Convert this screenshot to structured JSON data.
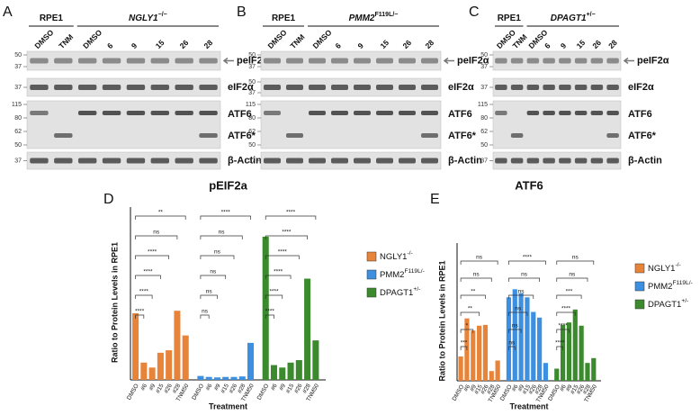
{
  "blots": [
    {
      "panel": "A",
      "groups": [
        {
          "label": "RPE1"
        },
        {
          "label": "NGLY1",
          "superscript": "−/−"
        }
      ],
      "lanes": [
        "DMSO",
        "TNM",
        "DMSO",
        "6",
        "9",
        "15",
        "26",
        "28"
      ],
      "rows": [
        {
          "labels": [
            "peIF2α"
          ],
          "markers": [
            50,
            37
          ]
        },
        {
          "labels": [
            "eIF2α"
          ],
          "markers": [
            37
          ]
        },
        {
          "labels": [
            "ATF6",
            "ATF6*"
          ],
          "markers": [
            115,
            80,
            62,
            50
          ]
        },
        {
          "labels": [
            "β-Actin"
          ],
          "markers": [
            37
          ]
        }
      ]
    },
    {
      "panel": "B",
      "groups": [
        {
          "label": "RPE1"
        },
        {
          "label": "PMM2",
          "superscript": "F119L/−"
        }
      ],
      "lanes": [
        "DMSO",
        "TNM",
        "DMSO",
        "6",
        "9",
        "15",
        "26",
        "28"
      ],
      "rows": [
        {
          "labels": [
            "peIF2α"
          ],
          "markers": [
            50,
            37
          ]
        },
        {
          "labels": [
            "eIF2α"
          ],
          "markers": [
            50,
            37
          ]
        },
        {
          "labels": [
            "ATF6",
            "ATF6*"
          ],
          "markers": [
            115,
            80,
            62,
            50
          ]
        },
        {
          "labels": [
            "β-Actin"
          ],
          "markers": [
            37
          ]
        }
      ]
    },
    {
      "panel": "C",
      "groups": [
        {
          "label": "RPE1"
        },
        {
          "label": "DPAGT1",
          "superscript": "+/−"
        }
      ],
      "lanes": [
        "DMSO",
        "TNM",
        "DMSO",
        "6",
        "9",
        "15",
        "26",
        "28"
      ],
      "rows": [
        {
          "labels": [
            "peIF2α"
          ],
          "markers": [
            50,
            37
          ]
        },
        {
          "labels": [
            "eIF2α"
          ],
          "markers": [
            37
          ]
        },
        {
          "labels": [
            "ATF6",
            "ATF6*"
          ],
          "markers": [
            115,
            80,
            62,
            50
          ]
        },
        {
          "labels": [
            "β-Actin"
          ],
          "markers": [
            37
          ]
        }
      ]
    }
  ],
  "chart_data": [
    {
      "type": "bar",
      "panel": "D",
      "title": "pEIF2a",
      "y_label": "Ratio to Protein Levels in RPE1",
      "x_label": "Treatment",
      "categories": [
        "DMSO",
        "#6",
        "#9",
        "#15",
        "#26",
        "#28",
        "TNM50"
      ],
      "ylim": [
        0,
        35
      ],
      "series": [
        {
          "name": "NGLY1",
          "name_superscript": "-/-",
          "color": "#e8843a",
          "values": [
            13.5,
            3.5,
            2.5,
            5.5,
            6,
            14,
            9
          ],
          "significance": [
            null,
            "****",
            "****",
            "****",
            "****",
            "ns",
            "**"
          ]
        },
        {
          "name": "PMM2",
          "name_superscript": "F119L/-",
          "color": "#3d8fe0",
          "values": [
            0.8,
            0.6,
            0.5,
            0.6,
            0.6,
            0.7,
            7.5
          ],
          "significance": [
            null,
            "ns",
            "ns",
            "ns",
            "ns",
            "ns",
            "****"
          ]
        },
        {
          "name": "DPAGT1",
          "name_superscript": "+/-",
          "color": "#3c8a2e",
          "values": [
            29,
            3,
            2.5,
            3.5,
            4,
            20.5,
            8
          ],
          "significance": [
            null,
            "****",
            "****",
            "****",
            "****",
            "****",
            "****"
          ]
        }
      ]
    },
    {
      "type": "bar",
      "panel": "E",
      "title": "ATF6",
      "y_label": "Ratio to Protein Levels in RPE1",
      "x_label": "Treatment",
      "categories": [
        "DMSO",
        "#6",
        "#9",
        "#15",
        "#26",
        "#28",
        "TNM50"
      ],
      "ylim": [
        0,
        1.7
      ],
      "series": [
        {
          "name": "NGLY1",
          "name_superscript": "-/-",
          "color": "#e8843a",
          "values": [
            0.3,
            0.77,
            0.62,
            0.68,
            0.69,
            0.12,
            0.25
          ],
          "significance": [
            null,
            "***",
            "*",
            "**",
            "**",
            "ns",
            "ns"
          ]
        },
        {
          "name": "PMM2",
          "name_superscript": "F119L/-",
          "color": "#3d8fe0",
          "values": [
            1.03,
            1.13,
            1.08,
            1.03,
            0.85,
            0.78,
            0.22
          ],
          "significance": [
            null,
            "ns",
            "ns",
            "ns",
            "ns",
            "ns",
            "****"
          ]
        },
        {
          "name": "DPAGT1",
          "name_superscript": "+/-",
          "color": "#3c8a2e",
          "values": [
            0.15,
            0.69,
            0.72,
            0.88,
            0.68,
            0.22,
            0.28
          ],
          "significance": [
            null,
            "****",
            "****",
            "****",
            "***",
            "ns",
            "ns"
          ]
        }
      ]
    }
  ]
}
